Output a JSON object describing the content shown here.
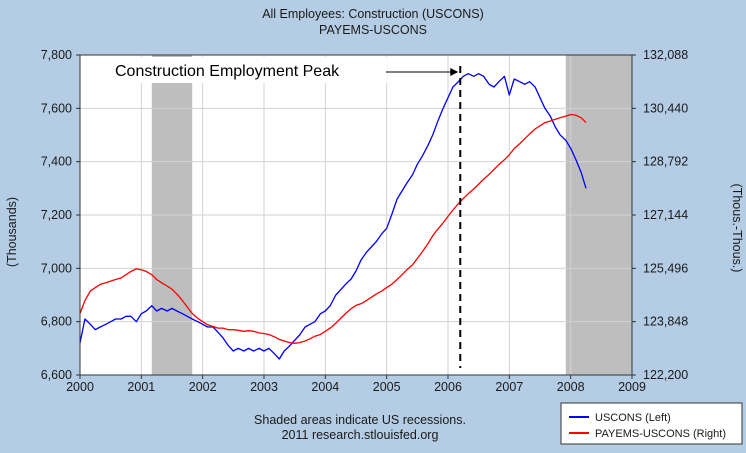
{
  "chart_data": {
    "type": "line",
    "title": "All Employees: Construction (USCONS)",
    "subtitle": "PAYEMS-USCONS",
    "ylabel_left": "(Thousands)",
    "ylabel_right": "(Thous.-Thous.)",
    "xlim": [
      2000,
      2009
    ],
    "ylim_left": [
      6600,
      7800
    ],
    "ylim_right": [
      122200,
      132088
    ],
    "x_ticks": [
      2000,
      2001,
      2002,
      2003,
      2004,
      2005,
      2006,
      2007,
      2008,
      2009
    ],
    "left_ticks": [
      6600,
      6800,
      7000,
      7200,
      7400,
      7600,
      7800
    ],
    "left_tick_labels": [
      "6,600",
      "6,800",
      "7,000",
      "7,200",
      "7,400",
      "7,600",
      "7,800"
    ],
    "right_ticks": [
      122200,
      123848,
      125496,
      127144,
      128792,
      130440,
      132088
    ],
    "right_tick_labels": [
      "122,200",
      "123,848",
      "125,496",
      "127,144",
      "128,792",
      "130,440",
      "132,088"
    ],
    "recessions": [
      [
        2001.17,
        2001.83
      ],
      [
        2007.92,
        2009.0
      ]
    ],
    "peak": {
      "x": 2006.2,
      "label": "Construction Employment Peak"
    },
    "note_line1": "Shaded areas indicate US recessions.",
    "note_line2": "2011 research.stlouisfed.org",
    "legend_position": "bottom-right",
    "series": [
      {
        "name": "USCONS (Left)",
        "color": "#0000ff",
        "axis": "left",
        "points": [
          [
            2000.0,
            6720
          ],
          [
            2000.08,
            6810
          ],
          [
            2000.17,
            6790
          ],
          [
            2000.25,
            6770
          ],
          [
            2000.33,
            6780
          ],
          [
            2000.42,
            6790
          ],
          [
            2000.5,
            6800
          ],
          [
            2000.58,
            6810
          ],
          [
            2000.67,
            6810
          ],
          [
            2000.75,
            6820
          ],
          [
            2000.83,
            6820
          ],
          [
            2000.92,
            6800
          ],
          [
            2001.0,
            6830
          ],
          [
            2001.08,
            6840
          ],
          [
            2001.17,
            6860
          ],
          [
            2001.25,
            6840
          ],
          [
            2001.33,
            6850
          ],
          [
            2001.42,
            6840
          ],
          [
            2001.5,
            6850
          ],
          [
            2001.58,
            6840
          ],
          [
            2001.67,
            6830
          ],
          [
            2001.75,
            6820
          ],
          [
            2001.83,
            6810
          ],
          [
            2001.92,
            6800
          ],
          [
            2002.0,
            6790
          ],
          [
            2002.08,
            6780
          ],
          [
            2002.17,
            6780
          ],
          [
            2002.25,
            6760
          ],
          [
            2002.33,
            6740
          ],
          [
            2002.42,
            6710
          ],
          [
            2002.5,
            6690
          ],
          [
            2002.58,
            6700
          ],
          [
            2002.67,
            6690
          ],
          [
            2002.75,
            6700
          ],
          [
            2002.83,
            6690
          ],
          [
            2002.92,
            6700
          ],
          [
            2003.0,
            6690
          ],
          [
            2003.08,
            6700
          ],
          [
            2003.17,
            6680
          ],
          [
            2003.25,
            6660
          ],
          [
            2003.33,
            6690
          ],
          [
            2003.42,
            6710
          ],
          [
            2003.5,
            6730
          ],
          [
            2003.58,
            6750
          ],
          [
            2003.67,
            6780
          ],
          [
            2003.75,
            6790
          ],
          [
            2003.83,
            6800
          ],
          [
            2003.92,
            6830
          ],
          [
            2004.0,
            6840
          ],
          [
            2004.08,
            6860
          ],
          [
            2004.17,
            6900
          ],
          [
            2004.25,
            6920
          ],
          [
            2004.33,
            6940
          ],
          [
            2004.42,
            6960
          ],
          [
            2004.5,
            6990
          ],
          [
            2004.58,
            7030
          ],
          [
            2004.67,
            7060
          ],
          [
            2004.75,
            7080
          ],
          [
            2004.83,
            7100
          ],
          [
            2004.92,
            7130
          ],
          [
            2005.0,
            7150
          ],
          [
            2005.08,
            7200
          ],
          [
            2005.17,
            7260
          ],
          [
            2005.25,
            7290
          ],
          [
            2005.33,
            7320
          ],
          [
            2005.42,
            7350
          ],
          [
            2005.5,
            7390
          ],
          [
            2005.58,
            7420
          ],
          [
            2005.67,
            7460
          ],
          [
            2005.75,
            7500
          ],
          [
            2005.83,
            7550
          ],
          [
            2005.92,
            7600
          ],
          [
            2006.0,
            7640
          ],
          [
            2006.08,
            7680
          ],
          [
            2006.17,
            7700
          ],
          [
            2006.25,
            7720
          ],
          [
            2006.33,
            7730
          ],
          [
            2006.42,
            7720
          ],
          [
            2006.5,
            7730
          ],
          [
            2006.58,
            7720
          ],
          [
            2006.67,
            7690
          ],
          [
            2006.75,
            7680
          ],
          [
            2006.83,
            7700
          ],
          [
            2006.92,
            7720
          ],
          [
            2007.0,
            7650
          ],
          [
            2007.08,
            7710
          ],
          [
            2007.17,
            7700
          ],
          [
            2007.25,
            7690
          ],
          [
            2007.33,
            7700
          ],
          [
            2007.42,
            7680
          ],
          [
            2007.5,
            7640
          ],
          [
            2007.58,
            7600
          ],
          [
            2007.67,
            7570
          ],
          [
            2007.75,
            7530
          ],
          [
            2007.83,
            7500
          ],
          [
            2007.92,
            7480
          ],
          [
            2008.0,
            7450
          ],
          [
            2008.08,
            7410
          ],
          [
            2008.17,
            7360
          ],
          [
            2008.25,
            7300
          ]
        ]
      },
      {
        "name": "PAYEMS-USCONS (Right)",
        "color": "#ff0000",
        "axis": "right",
        "points": [
          [
            2000.0,
            124100
          ],
          [
            2000.08,
            124500
          ],
          [
            2000.17,
            124800
          ],
          [
            2000.25,
            124900
          ],
          [
            2000.33,
            125000
          ],
          [
            2000.42,
            125050
          ],
          [
            2000.5,
            125100
          ],
          [
            2000.58,
            125150
          ],
          [
            2000.67,
            125200
          ],
          [
            2000.75,
            125300
          ],
          [
            2000.83,
            125400
          ],
          [
            2000.92,
            125480
          ],
          [
            2001.0,
            125450
          ],
          [
            2001.08,
            125400
          ],
          [
            2001.17,
            125300
          ],
          [
            2001.25,
            125150
          ],
          [
            2001.33,
            125050
          ],
          [
            2001.42,
            124950
          ],
          [
            2001.5,
            124850
          ],
          [
            2001.58,
            124700
          ],
          [
            2001.67,
            124500
          ],
          [
            2001.75,
            124300
          ],
          [
            2001.83,
            124100
          ],
          [
            2001.92,
            123950
          ],
          [
            2002.0,
            123850
          ],
          [
            2002.08,
            123750
          ],
          [
            2002.17,
            123700
          ],
          [
            2002.25,
            123650
          ],
          [
            2002.33,
            123650
          ],
          [
            2002.42,
            123600
          ],
          [
            2002.5,
            123600
          ],
          [
            2002.58,
            123580
          ],
          [
            2002.67,
            123550
          ],
          [
            2002.75,
            123570
          ],
          [
            2002.83,
            123550
          ],
          [
            2002.92,
            123500
          ],
          [
            2003.0,
            123480
          ],
          [
            2003.08,
            123450
          ],
          [
            2003.17,
            123380
          ],
          [
            2003.25,
            123300
          ],
          [
            2003.33,
            123250
          ],
          [
            2003.42,
            123200
          ],
          [
            2003.5,
            123180
          ],
          [
            2003.58,
            123200
          ],
          [
            2003.67,
            123250
          ],
          [
            2003.75,
            123320
          ],
          [
            2003.83,
            123400
          ],
          [
            2003.92,
            123450
          ],
          [
            2004.0,
            123550
          ],
          [
            2004.08,
            123650
          ],
          [
            2004.17,
            123800
          ],
          [
            2004.25,
            123950
          ],
          [
            2004.33,
            124100
          ],
          [
            2004.42,
            124250
          ],
          [
            2004.5,
            124350
          ],
          [
            2004.58,
            124400
          ],
          [
            2004.67,
            124500
          ],
          [
            2004.75,
            124600
          ],
          [
            2004.83,
            124700
          ],
          [
            2004.92,
            124800
          ],
          [
            2005.0,
            124900
          ],
          [
            2005.08,
            125000
          ],
          [
            2005.17,
            125150
          ],
          [
            2005.25,
            125300
          ],
          [
            2005.33,
            125450
          ],
          [
            2005.42,
            125600
          ],
          [
            2005.5,
            125800
          ],
          [
            2005.58,
            126000
          ],
          [
            2005.67,
            126250
          ],
          [
            2005.75,
            126500
          ],
          [
            2005.83,
            126700
          ],
          [
            2005.92,
            126900
          ],
          [
            2006.0,
            127100
          ],
          [
            2006.08,
            127300
          ],
          [
            2006.17,
            127500
          ],
          [
            2006.25,
            127650
          ],
          [
            2006.33,
            127800
          ],
          [
            2006.42,
            127950
          ],
          [
            2006.5,
            128100
          ],
          [
            2006.58,
            128250
          ],
          [
            2006.67,
            128400
          ],
          [
            2006.75,
            128550
          ],
          [
            2006.83,
            128700
          ],
          [
            2006.92,
            128850
          ],
          [
            2007.0,
            129000
          ],
          [
            2007.08,
            129200
          ],
          [
            2007.17,
            129350
          ],
          [
            2007.25,
            129500
          ],
          [
            2007.33,
            129650
          ],
          [
            2007.42,
            129800
          ],
          [
            2007.5,
            129900
          ],
          [
            2007.58,
            130000
          ],
          [
            2007.67,
            130050
          ],
          [
            2007.75,
            130100
          ],
          [
            2007.83,
            130150
          ],
          [
            2007.92,
            130200
          ],
          [
            2008.0,
            130250
          ],
          [
            2008.08,
            130230
          ],
          [
            2008.17,
            130150
          ],
          [
            2008.25,
            130000
          ]
        ]
      }
    ]
  }
}
